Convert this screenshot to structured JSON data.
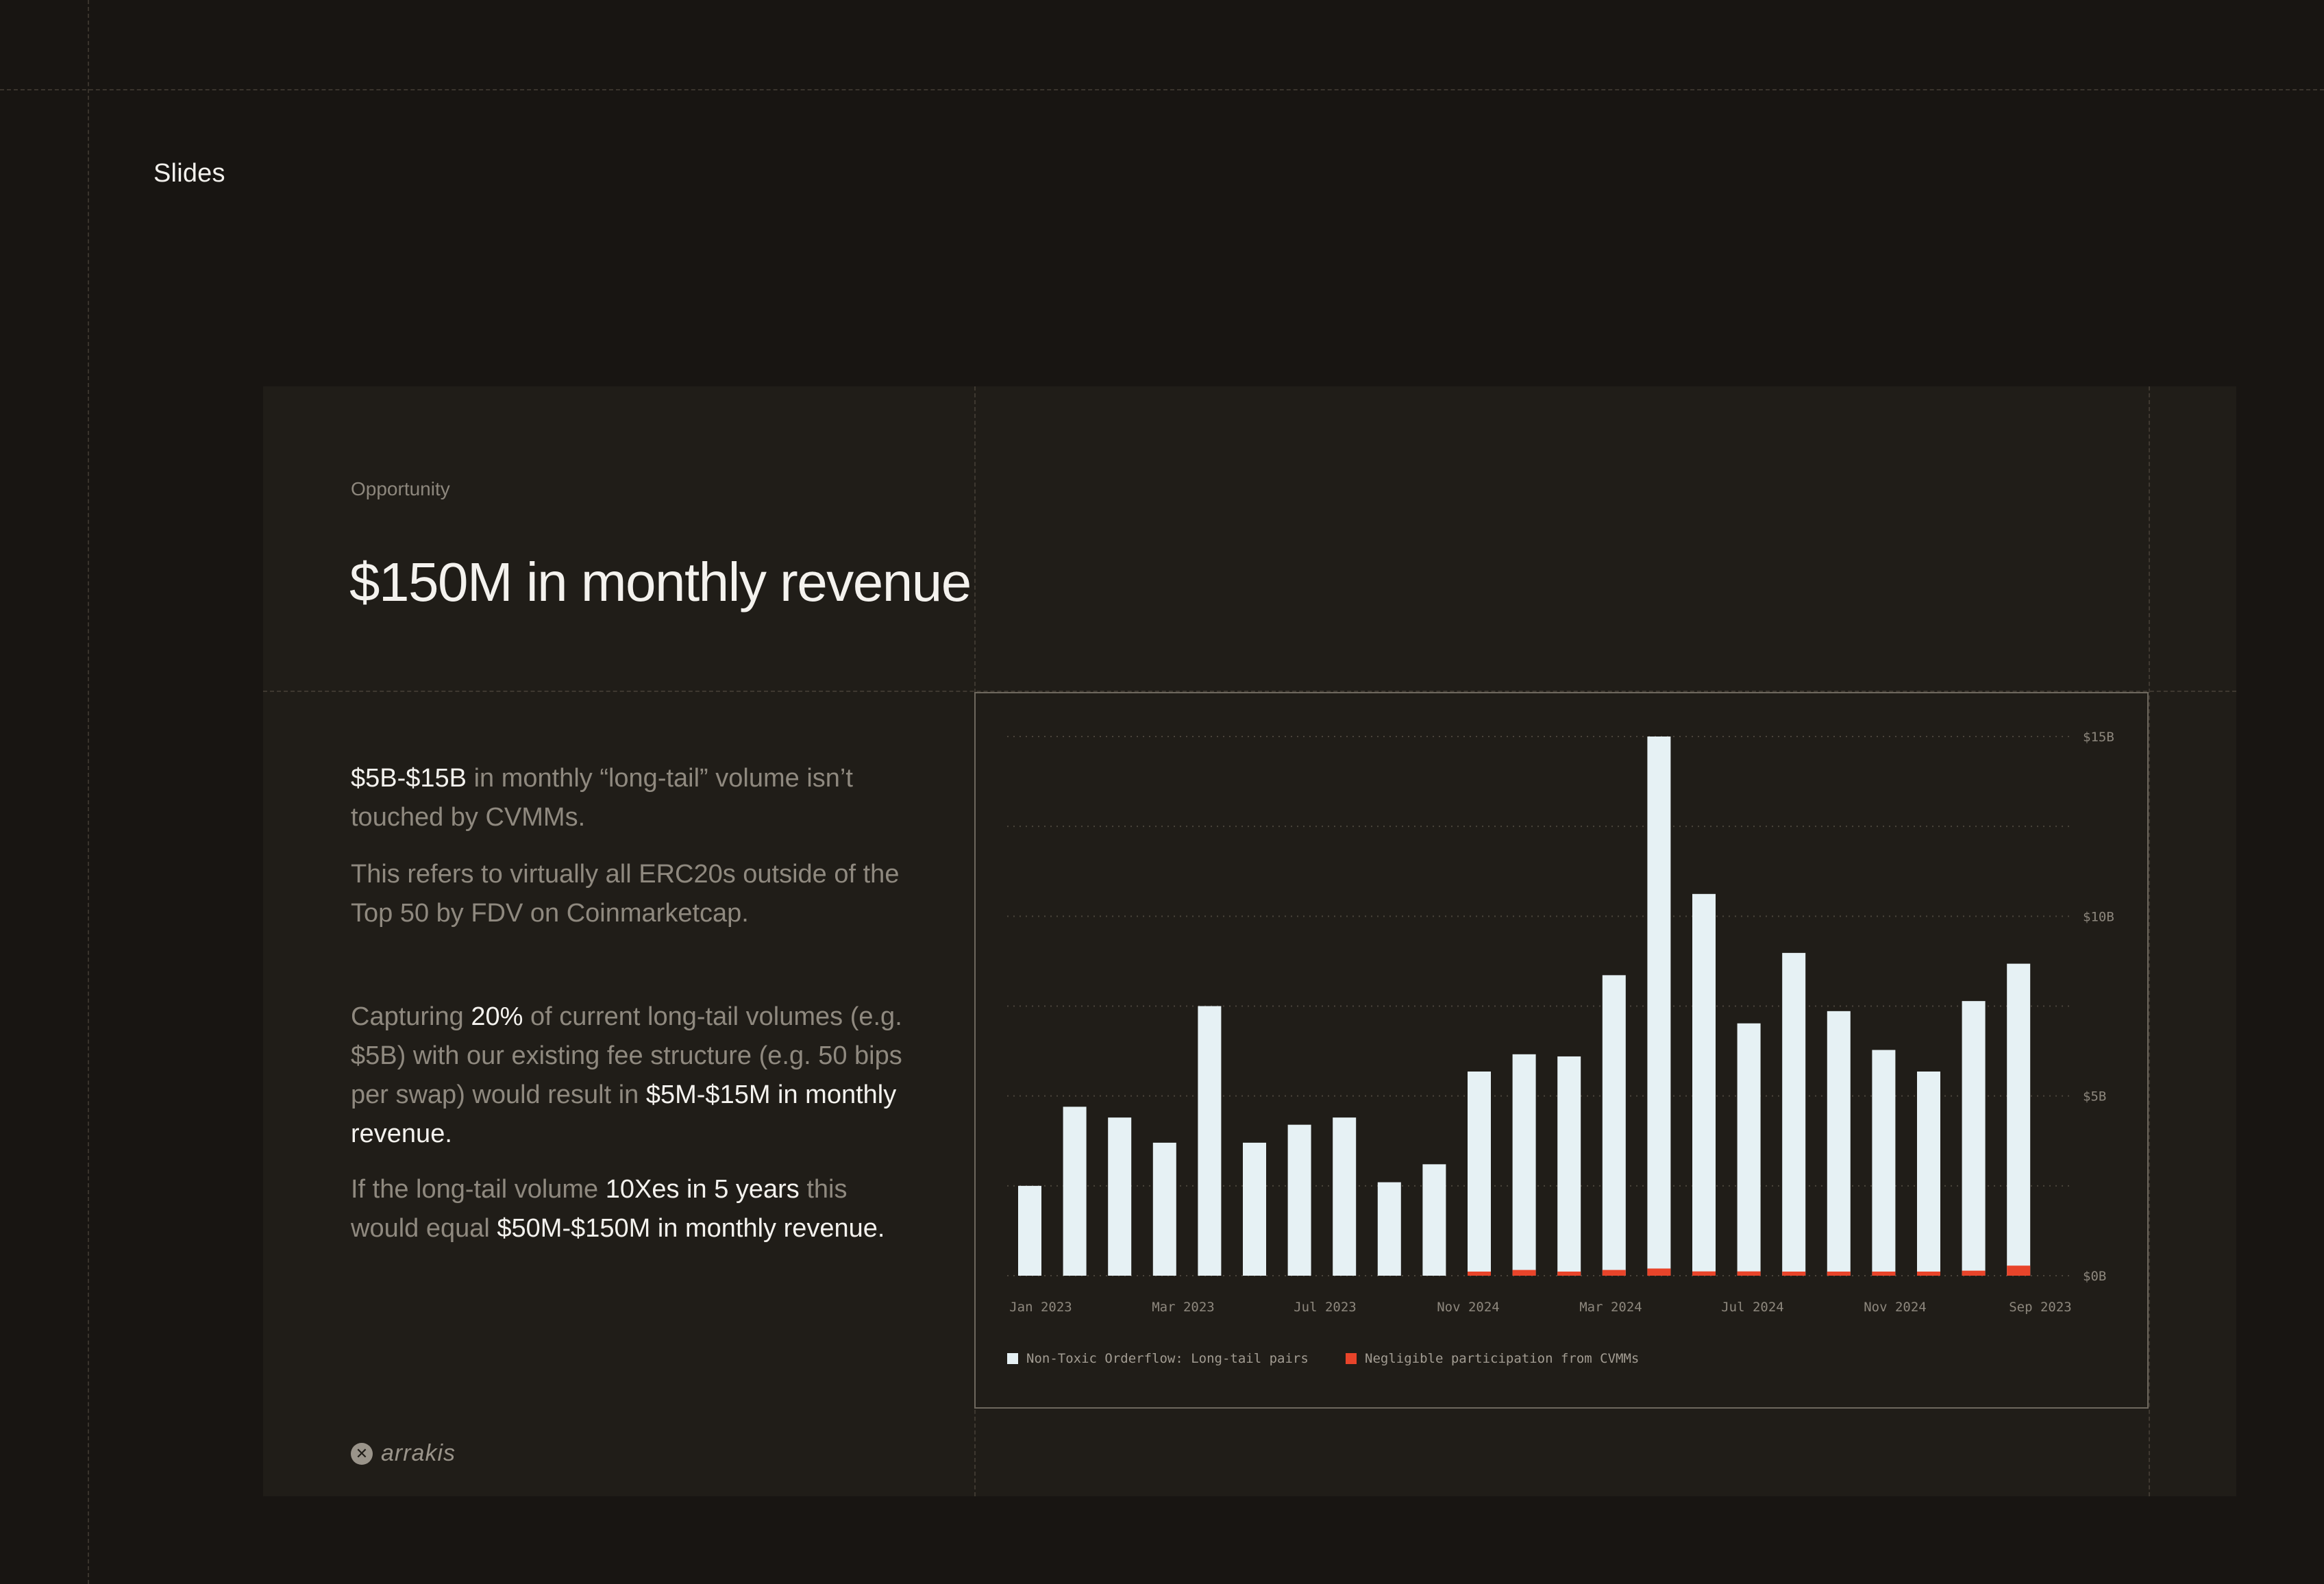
{
  "page": {
    "label": "Slides"
  },
  "slide": {
    "eyebrow": "Opportunity",
    "title": "$150M in monthly revenue",
    "para1": {
      "hl1": "$5B-$15B",
      "rest": " in monthly “long-tail” volume isn’t touched by CVMMs."
    },
    "para2": {
      "text": "This refers to virtually all ERC20s outside of the Top 50 by FDV on Coinmarketcap."
    },
    "para3": {
      "t1": "Capturing ",
      "hl1": "20%",
      "t2": " of current long-tail volumes (e.g. $5B) with our existing fee structure (e.g. 50 bips per swap) would result in ",
      "hl2": "$5M-$15M in monthly revenue."
    },
    "para4": {
      "t1": "If the long-tail volume ",
      "hl1": "10Xes in 5 years",
      "t2": " this would equal ",
      "hl2": "$50M-$150M in monthly revenue."
    },
    "logo": {
      "icon": "x-circle-icon",
      "text": "arrakis"
    }
  },
  "chart_data": {
    "type": "bar",
    "stacked": true,
    "y_unit": "$B",
    "ylim": [
      0,
      15
    ],
    "yticks": [
      "$0B",
      "$5B",
      "$10B",
      "$15B"
    ],
    "gridlines": true,
    "x_tick_labels": [
      "Jan 2023",
      "Mar 2023",
      "Jul 2023",
      "Nov 2024",
      "Mar 2024",
      "Jul 2024",
      "Nov 2024",
      "Sep 2023"
    ],
    "series": [
      {
        "name": "Non-Toxic Orderflow: Long-tail pairs",
        "color": "#e6f1f4",
        "values": [
          2.5,
          4.7,
          4.4,
          3.7,
          7.5,
          3.7,
          4.2,
          4.4,
          2.6,
          3.1,
          5.6,
          6.0,
          6.0,
          8.2,
          14.8,
          10.5,
          6.9,
          8.9,
          7.3,
          6.2,
          5.6,
          7.5,
          8.4
        ]
      },
      {
        "name": "Negligible participation from CVMMs",
        "color": "#e8442a",
        "values": [
          0,
          0,
          0,
          0,
          0,
          0,
          0,
          0,
          0,
          0,
          0.08,
          0.16,
          0.1,
          0.16,
          0.2,
          0.12,
          0.12,
          0.08,
          0.06,
          0.08,
          0.08,
          0.14,
          0.28
        ]
      }
    ],
    "legend_position": "bottom-left"
  }
}
